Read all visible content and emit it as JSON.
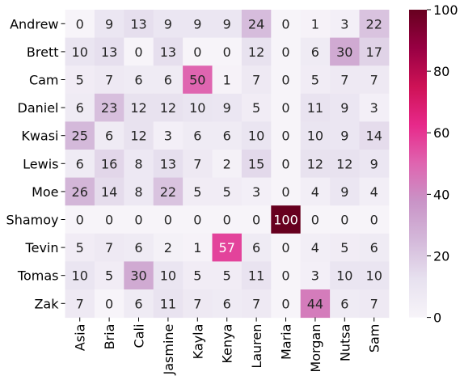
{
  "chart_data": {
    "type": "heatmap",
    "rows": [
      "Andrew",
      "Brett",
      "Cam",
      "Daniel",
      "Kwasi",
      "Lewis",
      "Moe",
      "Shamoy",
      "Tevin",
      "Tomas",
      "Zak"
    ],
    "columns": [
      "Asia",
      "Bria",
      "Cali",
      "Jasmine",
      "Kayla",
      "Kenya",
      "Lauren",
      "Maria",
      "Morgan",
      "Nutsa",
      "Sam"
    ],
    "values": [
      [
        0,
        9,
        13,
        9,
        9,
        9,
        24,
        0,
        1,
        3,
        22
      ],
      [
        10,
        13,
        0,
        13,
        0,
        0,
        12,
        0,
        6,
        30,
        17
      ],
      [
        5,
        7,
        6,
        6,
        50,
        1,
        7,
        0,
        5,
        7,
        7
      ],
      [
        6,
        23,
        12,
        12,
        10,
        9,
        5,
        0,
        11,
        9,
        3
      ],
      [
        25,
        6,
        12,
        3,
        6,
        6,
        10,
        0,
        10,
        9,
        14
      ],
      [
        6,
        16,
        8,
        13,
        7,
        2,
        15,
        0,
        12,
        12,
        9
      ],
      [
        26,
        14,
        8,
        22,
        5,
        5,
        3,
        0,
        4,
        9,
        4
      ],
      [
        0,
        0,
        0,
        0,
        0,
        0,
        0,
        100,
        0,
        0,
        0
      ],
      [
        5,
        7,
        6,
        2,
        1,
        57,
        6,
        0,
        4,
        5,
        6
      ],
      [
        10,
        5,
        30,
        10,
        5,
        5,
        11,
        0,
        3,
        10,
        10
      ],
      [
        7,
        0,
        6,
        11,
        7,
        6,
        7,
        0,
        44,
        6,
        7
      ]
    ],
    "colorbar": {
      "min": 0,
      "max": 100,
      "ticks": [
        0,
        20,
        40,
        60,
        80,
        100
      ]
    },
    "colormap": "PuRd",
    "color_stops": [
      "#f7f4f9",
      "#e7e1ef",
      "#d4b9da",
      "#c994c7",
      "#df65b0",
      "#e7298a",
      "#ce1256",
      "#980043",
      "#67001f"
    ],
    "annotations": true,
    "title": "",
    "xlabel": "",
    "ylabel": ""
  }
}
